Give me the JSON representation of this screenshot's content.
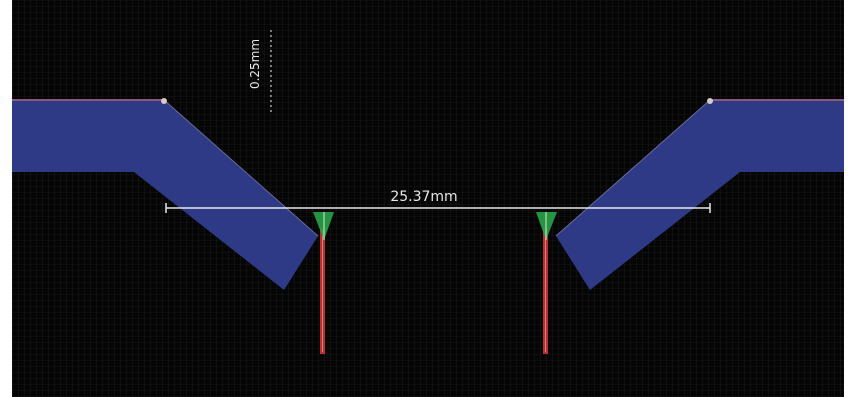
{
  "dimensions": {
    "width_label": "0.25mm",
    "gap_label": "25.37mm"
  },
  "colors": {
    "canvas_background": "#050505",
    "grid": "#2a2a2a",
    "trace": "#2e3a86",
    "trace_outline": "#8a5a7a",
    "pin": "#b83030",
    "via_marker": "#2aa34a",
    "dimension_line": "#e8e8e8"
  }
}
